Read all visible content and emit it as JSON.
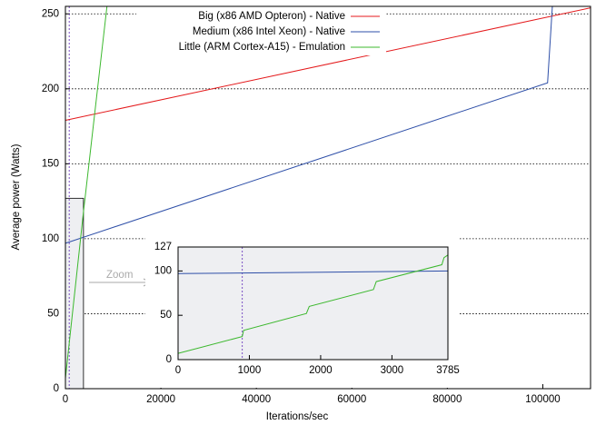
{
  "chart_data": [
    {
      "type": "line",
      "x_label": "Iterations/sec",
      "y_label": "Average power (Watts)",
      "xlim": [
        0,
        110000
      ],
      "ylim": [
        0,
        255
      ],
      "xticks": [
        0,
        20000,
        40000,
        60000,
        80000,
        100000
      ],
      "yticks": [
        0,
        50,
        100,
        150,
        200,
        250
      ],
      "grid": true,
      "legend": "top-right",
      "vline": 800,
      "vline_color": "#7a4fc4",
      "annotation": "Zoom",
      "series": [
        {
          "name": "Big (x86 AMD Opteron) - Native",
          "color": "#e41a1c",
          "x": [
            0,
            110000
          ],
          "values": [
            179,
            254
          ]
        },
        {
          "name": "Medium (x86 Intel Xeon) - Native",
          "color": "#2e4fa8",
          "x": [
            0,
            101000,
            102000
          ],
          "values": [
            97,
            204,
            255
          ]
        },
        {
          "name": "Little (ARM Cortex-A15) - Emulation",
          "color": "#3cb82e",
          "x": [
            0,
            3785,
            8700
          ],
          "values": [
            7,
            118,
            255
          ]
        }
      ]
    },
    {
      "type": "line",
      "xlim": [
        0,
        3785
      ],
      "ylim": [
        0,
        127
      ],
      "xticks": [
        0,
        1000,
        2000,
        3000,
        3785
      ],
      "yticks": [
        0,
        50,
        100,
        127
      ],
      "grid": false,
      "vline": 900,
      "vline_color": "#7a4fc4",
      "series": [
        {
          "color": "#2e4fa8",
          "x": [
            0,
            3785
          ],
          "values": [
            97,
            100
          ]
        },
        {
          "color": "#3cb82e",
          "x": [
            0,
            900,
            920,
            1800,
            1840,
            2740,
            2780,
            3700,
            3730,
            3785
          ],
          "values": [
            7,
            26,
            33,
            52,
            60,
            79,
            88,
            107,
            115,
            118
          ]
        }
      ]
    }
  ]
}
